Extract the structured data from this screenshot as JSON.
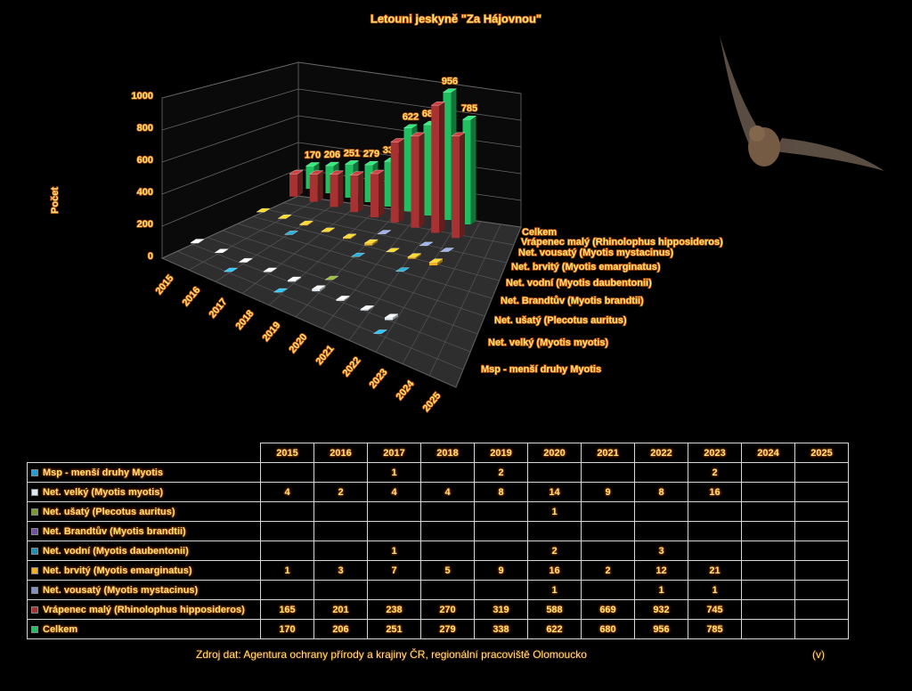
{
  "chart_data": {
    "type": "bar3d",
    "title": "Letouni jeskyně \"Za Hájovnou\"",
    "y_label": "Počet",
    "categories": [
      "2015",
      "2016",
      "2017",
      "2018",
      "2019",
      "2020",
      "2021",
      "2022",
      "2023",
      "2024",
      "2025"
    ],
    "ylim": [
      0,
      1000
    ],
    "yticks": [
      0,
      200,
      400,
      600,
      800,
      1000
    ],
    "grid": true,
    "series": [
      {
        "name": "Msp - menší druhy Myotis",
        "color": "#1fa0d8",
        "values": [
          null,
          null,
          1,
          null,
          2,
          null,
          null,
          null,
          2,
          null,
          null
        ]
      },
      {
        "name": "Net. velký (Myotis myotis)",
        "color": "#dfe8f0",
        "values": [
          4,
          2,
          4,
          4,
          8,
          14,
          9,
          8,
          16,
          null,
          null
        ]
      },
      {
        "name": "Net. ušatý (Plecotus auritus)",
        "color": "#7a9a30",
        "values": [
          null,
          null,
          null,
          null,
          null,
          1,
          null,
          null,
          null,
          null,
          null
        ]
      },
      {
        "name": "Net. Brandtův (Myotis brandtii)",
        "color": "#7050a0",
        "values": [
          null,
          null,
          null,
          null,
          null,
          null,
          null,
          null,
          null,
          null,
          null
        ]
      },
      {
        "name": "Net. vodní (Myotis daubentonii)",
        "color": "#2090b0",
        "values": [
          null,
          null,
          1,
          null,
          null,
          2,
          null,
          3,
          null,
          null,
          null
        ]
      },
      {
        "name": "Net. brvitý (Myotis emarginatus)",
        "color": "#f0b020",
        "values": [
          1,
          3,
          7,
          5,
          9,
          16,
          2,
          12,
          21,
          null,
          null
        ]
      },
      {
        "name": "Net. vousatý (Myotis mystacinus)",
        "color": "#8090c0",
        "values": [
          null,
          null,
          null,
          null,
          null,
          1,
          null,
          1,
          1,
          null,
          null
        ]
      },
      {
        "name": "Vrápenec malý (Rhinolophus hipposideros)",
        "color": "#a83232",
        "values": [
          165,
          201,
          238,
          270,
          319,
          588,
          669,
          932,
          745,
          null,
          null
        ]
      },
      {
        "name": "Celkem",
        "color": "#20c060",
        "values": [
          170,
          206,
          251,
          279,
          338,
          622,
          680,
          956,
          785,
          null,
          null
        ]
      }
    ],
    "label_series": 8,
    "source": "Zdroj dat:  Agentura ochrany přírody a krajiny ČR, regionální pracoviště Olomoucko",
    "note": "(v)"
  }
}
